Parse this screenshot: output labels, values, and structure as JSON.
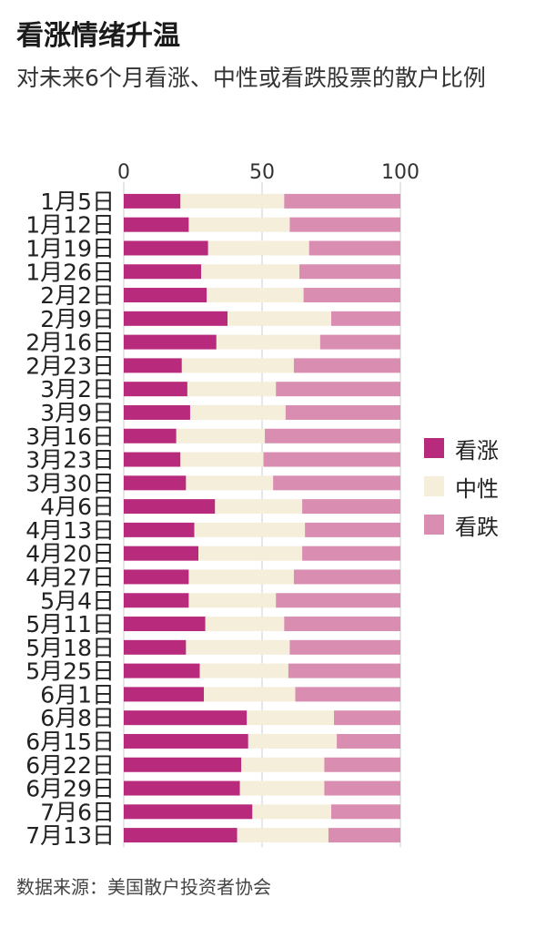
{
  "title": "看涨情绪升温",
  "subtitle": "对未来6个月看涨、中性或看跌股票的散户比例",
  "source": "数据来源：美国散户投资者协会",
  "colors": {
    "bullish": "#b82a7c",
    "neutral": "#f5eedb",
    "bearish": "#d98db0",
    "grid": "#cccccc"
  },
  "chart_data": {
    "type": "bar",
    "orientation": "horizontal",
    "stacked": true,
    "xlim": [
      0,
      100
    ],
    "x_ticks": [
      "0",
      "50",
      "100"
    ],
    "categories": [
      "1月5日",
      "1月12日",
      "1月19日",
      "1月26日",
      "2月2日",
      "2月9日",
      "2月16日",
      "2月23日",
      "3月2日",
      "3月9日",
      "3月16日",
      "3月23日",
      "3月30日",
      "4月6日",
      "4月13日",
      "4月20日",
      "4月27日",
      "5月4日",
      "5月11日",
      "5月18日",
      "5月25日",
      "6月1日",
      "6月8日",
      "6月15日",
      "6月22日",
      "6月29日",
      "7月6日",
      "7月13日"
    ],
    "series": [
      {
        "name": "看涨",
        "values": [
          20.5,
          23.5,
          30.5,
          28.0,
          30.0,
          37.5,
          33.5,
          21.0,
          23.0,
          24.0,
          19.0,
          20.5,
          22.5,
          33.0,
          25.5,
          27.0,
          23.5,
          23.5,
          29.5,
          22.5,
          27.5,
          29.0,
          44.5,
          45.0,
          42.5,
          42.0,
          46.5,
          41.0
        ]
      },
      {
        "name": "中性",
        "values": [
          37.5,
          36.5,
          36.5,
          35.5,
          35.0,
          37.5,
          37.5,
          40.5,
          32.0,
          34.5,
          32.0,
          30.0,
          31.5,
          31.5,
          40.0,
          37.5,
          38.0,
          31.5,
          28.5,
          37.5,
          32.0,
          33.0,
          31.5,
          32.0,
          30.0,
          30.5,
          28.5,
          33.0
        ]
      },
      {
        "name": "看跌",
        "values": [
          42.0,
          40.0,
          33.0,
          36.5,
          35.0,
          25.0,
          29.0,
          38.5,
          45.0,
          41.5,
          49.0,
          49.5,
          46.0,
          35.5,
          34.5,
          35.5,
          38.5,
          45.0,
          42.0,
          40.0,
          40.5,
          38.0,
          24.0,
          23.0,
          27.5,
          27.5,
          25.0,
          26.0
        ]
      }
    ],
    "legend_position": "right"
  }
}
